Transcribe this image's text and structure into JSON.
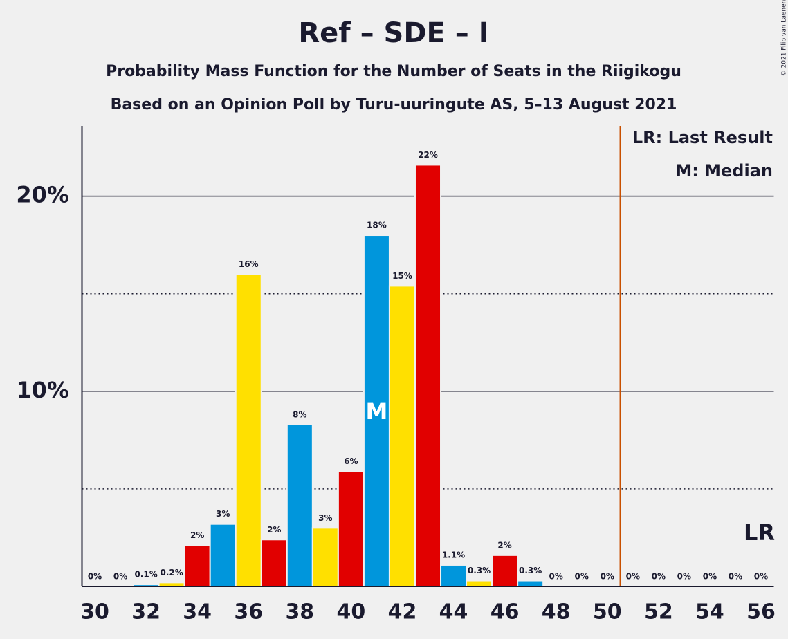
{
  "chart_data": {
    "type": "bar",
    "title": "Ref – SDE – I",
    "subtitle": "Probability Mass Function for the Number of Seats in the Riigikogu",
    "subtitle2": "Based on an Opinion Poll by Turu-uuringute AS, 5–13 August 2021",
    "copyright": "© 2021 Filip van Laenen",
    "categories": [
      30,
      null,
      32,
      null,
      34,
      null,
      36,
      null,
      38,
      null,
      40,
      null,
      42,
      null,
      44,
      null,
      46,
      null,
      48,
      null,
      50,
      null,
      52,
      null,
      54,
      null,
      56
    ],
    "values": [
      0,
      0,
      0.1,
      0.2,
      2.1,
      3.2,
      16,
      2.4,
      8.3,
      3,
      5.9,
      18,
      15.4,
      21.6,
      1.1,
      0.3,
      1.6,
      0.3,
      0,
      0,
      0,
      0,
      0,
      0,
      0,
      0,
      0
    ],
    "value_labels": [
      "0%",
      "0%",
      "0.1%",
      "0.2%",
      "2%",
      "3%",
      "16%",
      "2%",
      "8%",
      "3%",
      "6%",
      "18%",
      "15%",
      "22%",
      "1.1%",
      "0.3%",
      "2%",
      "0.3%",
      "0%",
      "0%",
      "0%",
      "0%",
      "0%",
      "0%",
      "0%",
      "0%",
      "0%"
    ],
    "colors": [
      "#FFE000",
      "#E10000",
      "#0096DC"
    ],
    "ylim": [
      0,
      23.6
    ],
    "yticks": [
      {
        "value": 10,
        "label": "10%"
      },
      {
        "value": 20,
        "label": "20%"
      }
    ],
    "minor_grid": [
      5,
      15
    ],
    "median_index": 11,
    "median_label": "M",
    "last_result_index": 21,
    "last_result_label": "LR",
    "legend": [
      "LR: Last Result",
      "M: Median"
    ]
  }
}
